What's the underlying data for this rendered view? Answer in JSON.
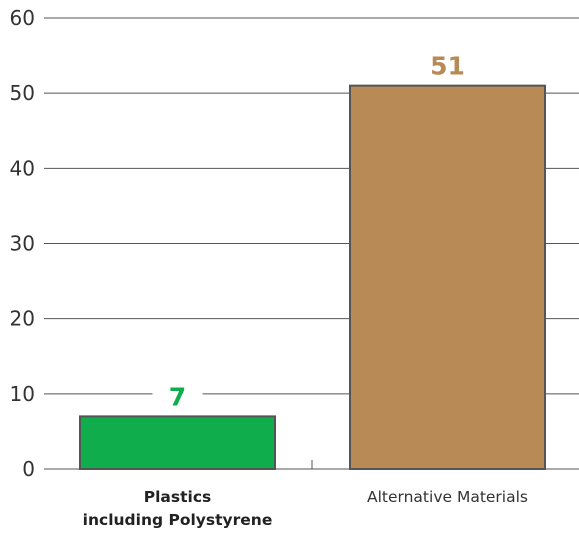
{
  "chart_data": {
    "type": "bar",
    "title": "",
    "xlabel": "",
    "ylabel": "",
    "ylim": [
      0,
      60
    ],
    "yticks": [
      "0",
      "10",
      "20",
      "30",
      "40",
      "50",
      "60"
    ],
    "grid": true,
    "categories": [
      {
        "lines": [
          "Plastics",
          "including Polystyrene"
        ],
        "bold": true
      },
      {
        "lines": [
          "Alternative Materials"
        ],
        "bold": false
      }
    ],
    "values": [
      7,
      51
    ],
    "value_labels": [
      "7",
      "51"
    ],
    "colors": {
      "bars": [
        "#0fad4b",
        "#b88a56"
      ],
      "value_labels": [
        "#0fad4b",
        "#b88a56"
      ],
      "bar_outline": "#555555",
      "grid": "#555555",
      "tick_text": "#333333"
    }
  }
}
